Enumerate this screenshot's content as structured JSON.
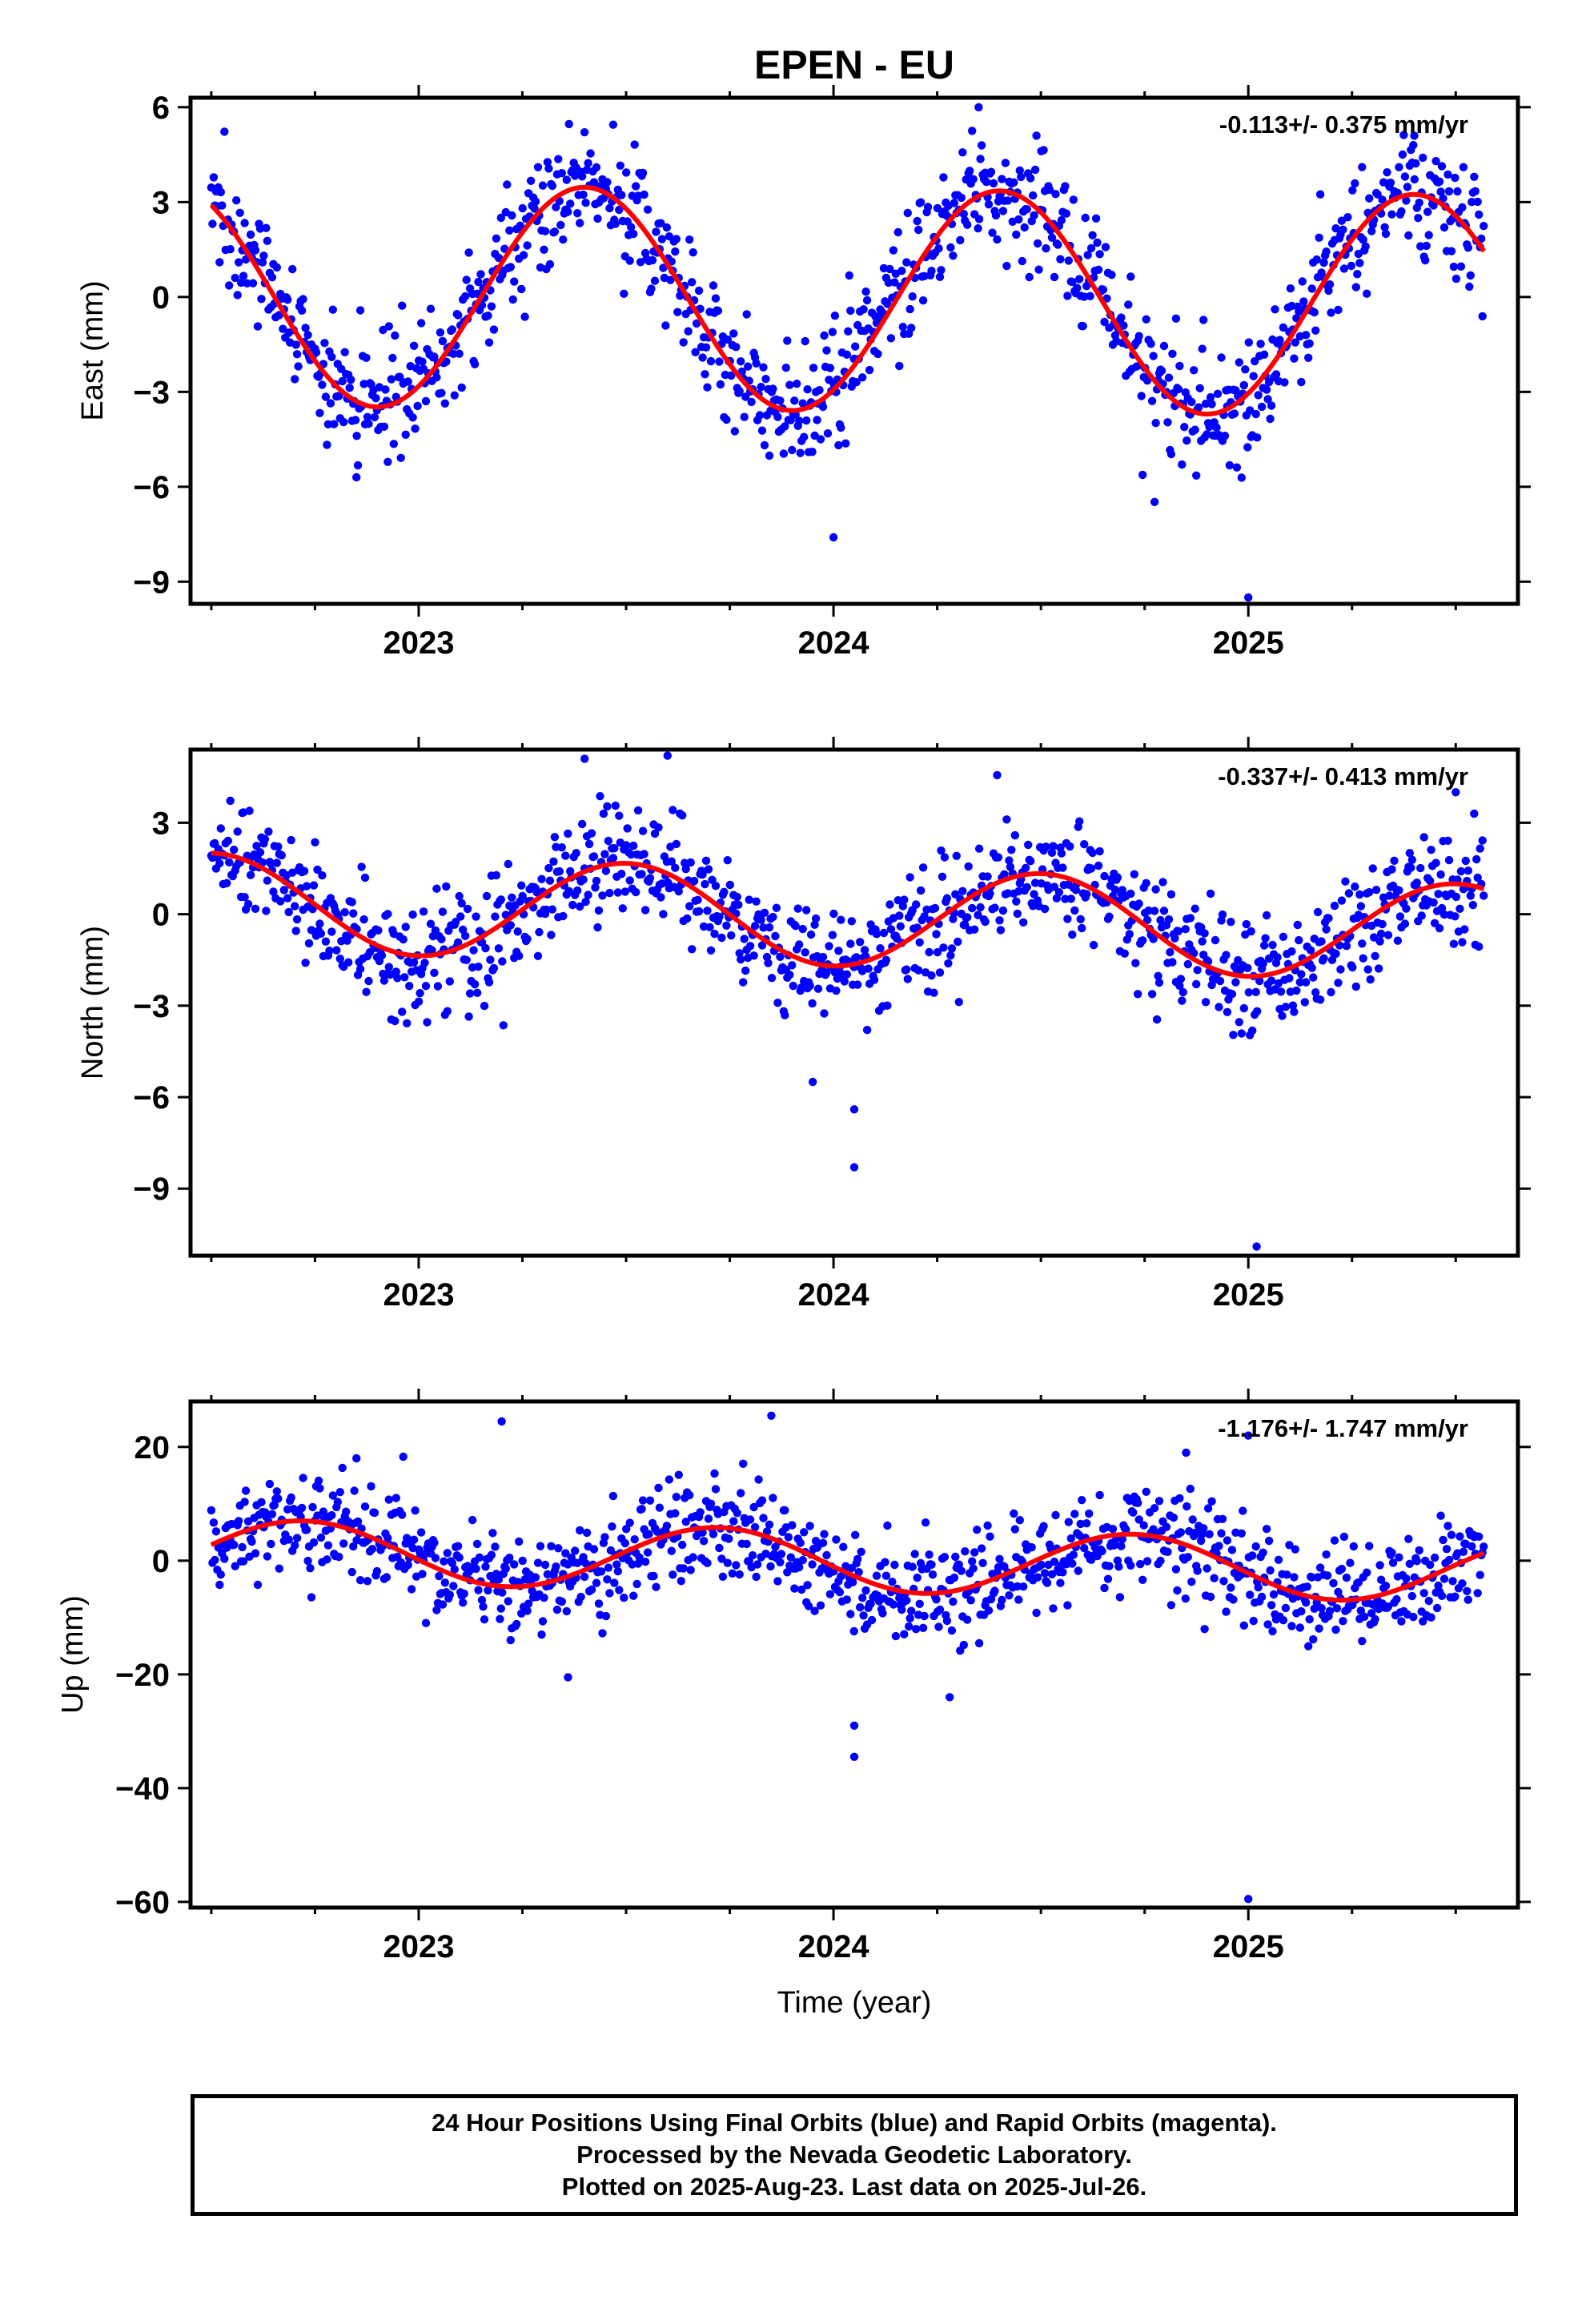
{
  "page_title": "EPEN - EU",
  "x_axis_label": "Time (year)",
  "footer": {
    "line1": "24 Hour Positions Using Final Orbits (blue) and Rapid Orbits (magenta).",
    "line2": "Processed by the Nevada Geodetic Laboratory.",
    "line3": "Plotted on 2025-Aug-23. Last data on 2025-Jul-26."
  },
  "colors": {
    "final_orbits": "#0000ff",
    "fit_line": "#ff0000",
    "frame": "#000000"
  },
  "chart_data": [
    {
      "type": "scatter",
      "component": "east",
      "ylabel": "East (mm)",
      "annotation": "-0.113+/- 0.375 mm/yr",
      "xlim": [
        2022.45,
        2025.65
      ],
      "ylim": [
        -9.7,
        6.3
      ],
      "x_ticks": [
        2023,
        2024,
        2025
      ],
      "y_ticks": [
        6,
        3,
        0,
        -3,
        -6,
        -9
      ],
      "y_tick_labels": [
        "6",
        "3",
        "0",
        "−3",
        "−6",
        "−9"
      ],
      "fit": {
        "offset": -0.1,
        "trend_mm_per_yr": -0.113,
        "amplitude": 3.5,
        "phase_peak_year": 0.4
      },
      "scatter_sd": 1.0,
      "outliers": [
        [
          2024.0,
          -7.6
        ],
        [
          2025.0,
          -9.5
        ],
        [
          2024.35,
          6.0
        ],
        [
          2022.85,
          -5.7
        ],
        [
          2025.4,
          5.1
        ]
      ]
    },
    {
      "type": "scatter",
      "component": "north",
      "ylabel": "North (mm)",
      "annotation": "-0.337+/- 0.413 mm/yr",
      "xlim": [
        2022.45,
        2025.65
      ],
      "ylim": [
        -11.2,
        5.4
      ],
      "x_ticks": [
        2023,
        2024,
        2025
      ],
      "y_ticks": [
        3,
        0,
        -3,
        -6,
        -9
      ],
      "y_tick_labels": [
        "3",
        "0",
        "−3",
        "−6",
        "−9"
      ],
      "fit": {
        "offset": -0.1,
        "trend_mm_per_yr": -0.337,
        "amplitude": 1.6,
        "phase_peak_year": 0.5
      },
      "scatter_sd": 0.95,
      "outliers": [
        [
          2024.05,
          -8.3
        ],
        [
          2024.05,
          -6.4
        ],
        [
          2023.95,
          -5.5
        ],
        [
          2025.02,
          -10.9
        ],
        [
          2023.6,
          5.2
        ],
        [
          2023.4,
          5.1
        ],
        [
          2025.5,
          4.0
        ]
      ]
    },
    {
      "type": "scatter",
      "component": "up",
      "ylabel": "Up (mm)",
      "annotation": "-1.176+/- 1.747 mm/yr",
      "xlim": [
        2022.45,
        2025.65
      ],
      "ylim": [
        -61,
        28
      ],
      "x_ticks": [
        2023,
        2024,
        2025
      ],
      "y_ticks": [
        20,
        0,
        -20,
        -40,
        -60
      ],
      "y_tick_labels": [
        "20",
        "0",
        "−20",
        "−40",
        "−60"
      ],
      "fit": {
        "offset": 0.0,
        "trend_mm_per_yr": -1.176,
        "amplitude": 5.5,
        "phase_peak_year": 0.72
      },
      "scatter_sd": 4.5,
      "outliers": [
        [
          2024.05,
          -34.5
        ],
        [
          2024.05,
          -29.0
        ],
        [
          2025.0,
          -59.5
        ],
        [
          2023.2,
          24.5
        ],
        [
          2023.85,
          25.5
        ],
        [
          2022.85,
          18.0
        ],
        [
          2024.85,
          19.0
        ],
        [
          2025.0,
          22.0
        ],
        [
          2023.36,
          -20.5
        ],
        [
          2024.28,
          -24.0
        ]
      ]
    }
  ]
}
